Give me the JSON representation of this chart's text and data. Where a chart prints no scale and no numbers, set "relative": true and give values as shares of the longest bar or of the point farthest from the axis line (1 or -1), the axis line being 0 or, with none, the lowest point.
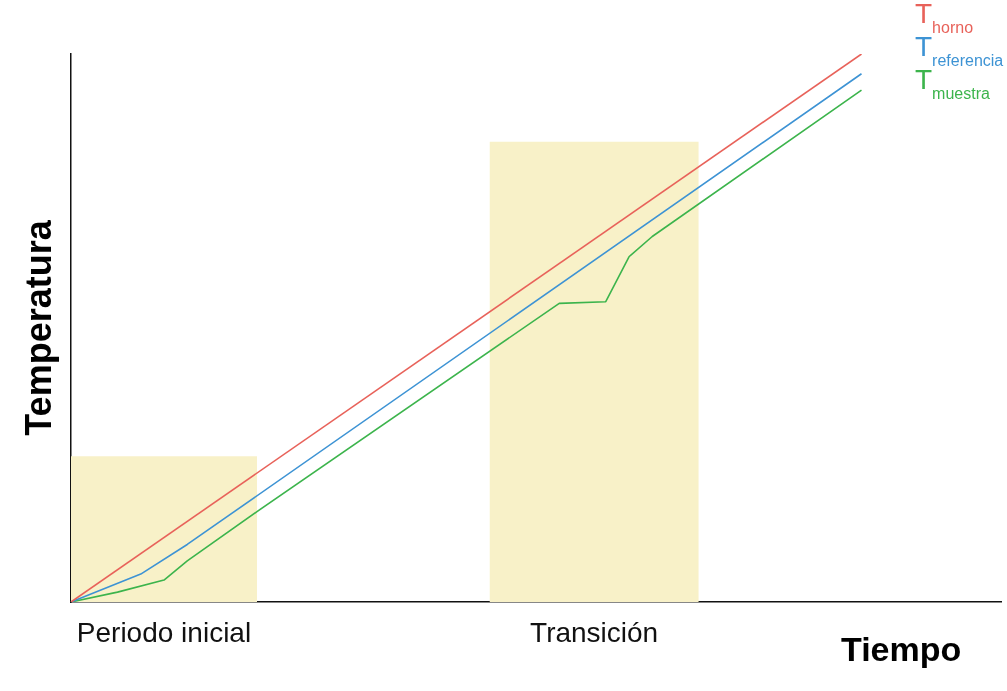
{
  "chart_data": {
    "type": "line",
    "relative": true,
    "xlabel": "Tiempo",
    "ylabel": "Temperatura",
    "marker": "none",
    "categories": [
      null,
      null,
      null,
      null,
      null,
      null,
      null,
      null,
      null,
      null,
      null,
      null,
      null,
      null,
      null,
      null,
      null,
      null,
      null,
      null,
      null,
      null,
      null,
      null,
      null,
      null,
      null,
      null,
      null,
      null,
      null,
      null,
      null,
      null,
      null,
      null,
      null,
      null,
      null,
      null,
      null
    ],
    "series": [
      {
        "type": "area",
        "color": "#f8f1c8",
        "values": [
          0.266,
          0.266,
          0.266,
          0.266,
          0.266,
          0.266,
          0.266,
          0.266,
          0.266,
          null,
          null,
          null,
          null,
          null,
          null,
          null,
          null,
          null,
          null,
          null,
          null,
          null,
          null,
          null,
          null,
          null,
          null,
          null,
          null,
          null,
          null,
          null,
          null,
          null,
          null,
          null,
          null,
          null,
          null,
          null,
          null
        ]
      },
      {
        "type": "area",
        "color": "#f8f1c8",
        "values": [
          null,
          null,
          null,
          null,
          null,
          null,
          null,
          null,
          null,
          null,
          null,
          null,
          null,
          null,
          null,
          null,
          null,
          null,
          0.84,
          0.84,
          0.84,
          0.84,
          0.84,
          0.84,
          0.84,
          0.84,
          0.84,
          0.84,
          null,
          null,
          null,
          null,
          null,
          null,
          null,
          null,
          null,
          null,
          null,
          null,
          null
        ]
      },
      {
        "name": "T$_{horno}$",
        "color": "#e8625a",
        "values": [
          0,
          null,
          null,
          null,
          null,
          null,
          null,
          null,
          null,
          null,
          null,
          null,
          null,
          null,
          null,
          null,
          null,
          null,
          null,
          null,
          null,
          null,
          null,
          null,
          null,
          null,
          null,
          null,
          null,
          null,
          null,
          null,
          null,
          null,
          1,
          null,
          null,
          null,
          null,
          null,
          null
        ]
      },
      {
        "name": "T$_{referencia}$",
        "color": "#3d93d4",
        "values": [
          0,
          null,
          null,
          0.051,
          null,
          0.105,
          null,
          null,
          null,
          null,
          null,
          null,
          null,
          null,
          null,
          null,
          null,
          null,
          null,
          null,
          null,
          null,
          null,
          null,
          null,
          null,
          null,
          null,
          null,
          null,
          null,
          null,
          null,
          null,
          0.964,
          null,
          null,
          null,
          null,
          null,
          null
        ]
      },
      {
        "name": "T$_{muestra}$",
        "color": "#3cb44c",
        "values": [
          0,
          null,
          0.018,
          null,
          0.04,
          0.075,
          null,
          null,
          0.165,
          null,
          null,
          null,
          null,
          null,
          null,
          null,
          null,
          null,
          null,
          null,
          null,
          0.545,
          null,
          0.548,
          0.63,
          0.667,
          null,
          null,
          null,
          null,
          null,
          null,
          null,
          null,
          0.934,
          null,
          null,
          null,
          null,
          null,
          null
        ]
      }
    ],
    "annotations": [
      "Periodo inicial",
      "Transición"
    ]
  }
}
